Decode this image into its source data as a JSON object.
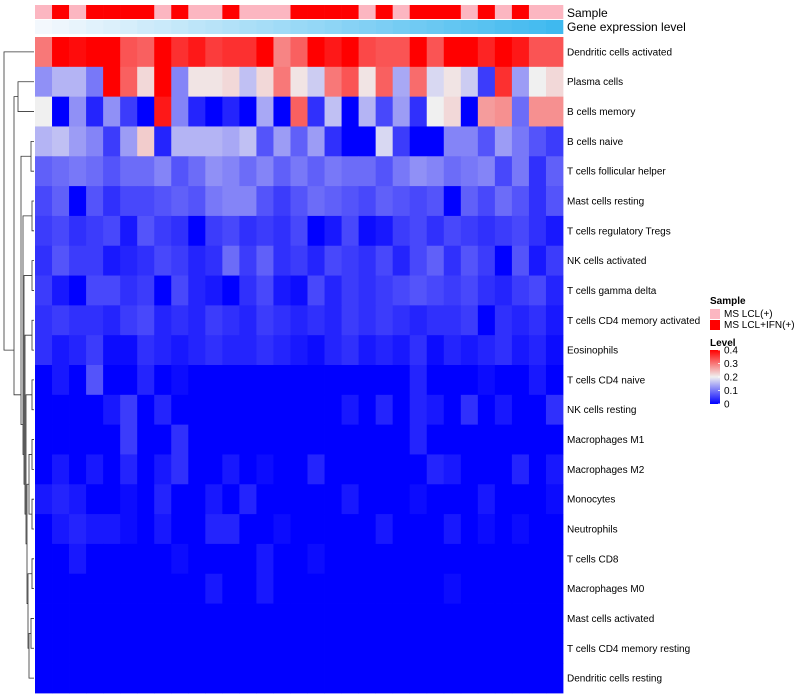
{
  "chart_data": {
    "type": "heatmap",
    "title": "",
    "annotation_tracks": [
      "Sample",
      "Gene expression level"
    ],
    "row_labels": [
      "Dendritic cells activated",
      "Plasma cells",
      "B cells memory",
      "B cells naive",
      "T cells follicular helper",
      "Mast cells resting",
      "T cells regulatory  Tregs",
      "NK cells activated",
      "T cells gamma delta",
      "T cells CD4 memory activated",
      "Eosinophils",
      "T cells CD4 naive",
      "NK cells resting",
      "Macrophages M1",
      "Macrophages M2",
      "Monocytes",
      "Neutrophils",
      "T cells CD8",
      "Macrophages M0",
      "Mast cells activated",
      "T cells CD4 memory resting",
      "Dendritic cells resting"
    ],
    "sample_groups": [
      "LCL",
      "IFN",
      "LCL",
      "IFN",
      "IFN",
      "IFN",
      "IFN",
      "LCL",
      "IFN",
      "LCL",
      "LCL",
      "IFN",
      "LCL",
      "LCL",
      "LCL",
      "IFN",
      "IFN",
      "IFN",
      "IFN",
      "LCL",
      "IFN",
      "LCL",
      "IFN",
      "IFN",
      "IFN",
      "LCL",
      "IFN",
      "LCL",
      "IFN",
      "LCL",
      "LCL"
    ],
    "expression_level": [
      0.0,
      0.03,
      0.06,
      0.1,
      0.13,
      0.16,
      0.2,
      0.23,
      0.26,
      0.3,
      0.33,
      0.36,
      0.4,
      0.43,
      0.46,
      0.5,
      0.53,
      0.56,
      0.6,
      0.63,
      0.66,
      0.7,
      0.73,
      0.76,
      0.8,
      0.83,
      0.86,
      0.9,
      0.93,
      0.96,
      1.0
    ],
    "values": [
      [
        0.3,
        0.4,
        0.39,
        0.4,
        0.4,
        0.33,
        0.32,
        0.4,
        0.36,
        0.38,
        0.35,
        0.36,
        0.36,
        0.4,
        0.29,
        0.32,
        0.4,
        0.38,
        0.4,
        0.34,
        0.33,
        0.33,
        0.4,
        0.33,
        0.4,
        0.4,
        0.37,
        0.4,
        0.38,
        0.33,
        0.33
      ],
      [
        0.12,
        0.15,
        0.15,
        0.1,
        0.4,
        0.32,
        0.22,
        0.4,
        0.11,
        0.21,
        0.21,
        0.22,
        0.16,
        0.22,
        0.3,
        0.21,
        0.17,
        0.3,
        0.33,
        0.21,
        0.32,
        0.14,
        0.31,
        0.18,
        0.21,
        0.17,
        0.05,
        0.36,
        0.13,
        0.2,
        0.22
      ],
      [
        0.2,
        0.0,
        0.12,
        0.03,
        0.12,
        0.05,
        0.0,
        0.38,
        0.11,
        0.03,
        0.0,
        0.03,
        0.0,
        0.14,
        0.0,
        0.32,
        0.04,
        0.16,
        0.0,
        0.15,
        0.06,
        0.13,
        0.04,
        0.2,
        0.22,
        0.0,
        0.27,
        0.28,
        0.09,
        0.28,
        0.28
      ],
      [
        0.15,
        0.16,
        0.13,
        0.11,
        0.05,
        0.13,
        0.23,
        0.03,
        0.15,
        0.15,
        0.15,
        0.14,
        0.16,
        0.07,
        0.13,
        0.08,
        0.13,
        0.04,
        0.0,
        0.0,
        0.18,
        0.05,
        0.0,
        0.0,
        0.11,
        0.11,
        0.07,
        0.13,
        0.1,
        0.07,
        0.05
      ],
      [
        0.08,
        0.09,
        0.1,
        0.09,
        0.07,
        0.09,
        0.09,
        0.11,
        0.07,
        0.09,
        0.12,
        0.11,
        0.09,
        0.11,
        0.08,
        0.1,
        0.08,
        0.1,
        0.09,
        0.09,
        0.07,
        0.1,
        0.12,
        0.11,
        0.09,
        0.1,
        0.11,
        0.06,
        0.1,
        0.04,
        0.08
      ],
      [
        0.06,
        0.08,
        0.0,
        0.07,
        0.04,
        0.06,
        0.06,
        0.07,
        0.08,
        0.07,
        0.1,
        0.11,
        0.11,
        0.07,
        0.05,
        0.07,
        0.09,
        0.08,
        0.07,
        0.06,
        0.08,
        0.07,
        0.06,
        0.07,
        0.0,
        0.08,
        0.06,
        0.09,
        0.07,
        0.04,
        0.07
      ],
      [
        0.05,
        0.06,
        0.04,
        0.05,
        0.06,
        0.02,
        0.07,
        0.05,
        0.04,
        0.0,
        0.05,
        0.06,
        0.04,
        0.05,
        0.04,
        0.06,
        0.0,
        0.02,
        0.06,
        0.01,
        0.02,
        0.05,
        0.06,
        0.04,
        0.06,
        0.05,
        0.04,
        0.05,
        0.06,
        0.04,
        0.02
      ],
      [
        0.04,
        0.07,
        0.05,
        0.05,
        0.02,
        0.03,
        0.04,
        0.06,
        0.05,
        0.03,
        0.04,
        0.09,
        0.05,
        0.08,
        0.04,
        0.05,
        0.03,
        0.06,
        0.05,
        0.04,
        0.06,
        0.03,
        0.06,
        0.08,
        0.04,
        0.07,
        0.05,
        0.0,
        0.07,
        0.02,
        0.05
      ],
      [
        0.05,
        0.02,
        0.0,
        0.06,
        0.06,
        0.04,
        0.05,
        0.0,
        0.06,
        0.03,
        0.02,
        0.0,
        0.04,
        0.06,
        0.02,
        0.01,
        0.06,
        0.03,
        0.05,
        0.04,
        0.05,
        0.06,
        0.07,
        0.06,
        0.05,
        0.06,
        0.04,
        0.03,
        0.05,
        0.06,
        0.03
      ],
      [
        0.04,
        0.05,
        0.04,
        0.04,
        0.03,
        0.05,
        0.06,
        0.03,
        0.04,
        0.03,
        0.05,
        0.04,
        0.03,
        0.05,
        0.04,
        0.03,
        0.04,
        0.03,
        0.05,
        0.04,
        0.05,
        0.04,
        0.03,
        0.04,
        0.04,
        0.05,
        0.0,
        0.04,
        0.03,
        0.04,
        0.02
      ],
      [
        0.04,
        0.02,
        0.03,
        0.05,
        0.01,
        0.01,
        0.04,
        0.03,
        0.02,
        0.03,
        0.04,
        0.03,
        0.03,
        0.04,
        0.03,
        0.02,
        0.01,
        0.03,
        0.04,
        0.02,
        0.03,
        0.02,
        0.04,
        0.01,
        0.03,
        0.02,
        0.03,
        0.04,
        0.02,
        0.03,
        0.01
      ],
      [
        0.0,
        0.02,
        0.0,
        0.07,
        0.0,
        0.0,
        0.03,
        0.0,
        0.01,
        0.0,
        0.0,
        0.0,
        0.0,
        0.0,
        0.0,
        0.0,
        0.0,
        0.0,
        0.0,
        0.0,
        0.0,
        0.0,
        0.03,
        0.0,
        0.0,
        0.0,
        0.01,
        0.0,
        0.0,
        0.02,
        0.0
      ],
      [
        0.0,
        0.0,
        0.0,
        0.0,
        0.02,
        0.05,
        0.0,
        0.03,
        0.0,
        0.0,
        0.0,
        0.0,
        0.0,
        0.0,
        0.0,
        0.0,
        0.0,
        0.0,
        0.02,
        0.0,
        0.03,
        0.0,
        0.03,
        0.02,
        0.0,
        0.04,
        0.0,
        0.02,
        0.0,
        0.0,
        0.04
      ],
      [
        0.0,
        0.0,
        0.0,
        0.0,
        0.0,
        0.05,
        0.0,
        0.0,
        0.04,
        0.0,
        0.0,
        0.0,
        0.0,
        0.0,
        0.0,
        0.0,
        0.0,
        0.0,
        0.0,
        0.0,
        0.0,
        0.0,
        0.03,
        0.0,
        0.0,
        0.0,
        0.0,
        0.0,
        0.0,
        0.0,
        0.0
      ],
      [
        0.0,
        0.02,
        0.0,
        0.02,
        0.0,
        0.03,
        0.0,
        0.02,
        0.04,
        0.0,
        0.0,
        0.02,
        0.0,
        0.01,
        0.0,
        0.0,
        0.03,
        0.0,
        0.0,
        0.0,
        0.0,
        0.0,
        0.0,
        0.03,
        0.02,
        0.0,
        0.0,
        0.0,
        0.03,
        0.0,
        0.02
      ],
      [
        0.02,
        0.03,
        0.02,
        0.0,
        0.0,
        0.01,
        0.0,
        0.03,
        0.0,
        0.0,
        0.02,
        0.0,
        0.03,
        0.0,
        0.0,
        0.0,
        0.0,
        0.0,
        0.02,
        0.0,
        0.0,
        0.0,
        0.01,
        0.0,
        0.0,
        0.0,
        0.02,
        0.0,
        0.0,
        0.0,
        0.01
      ],
      [
        0.0,
        0.02,
        0.03,
        0.02,
        0.02,
        0.01,
        0.0,
        0.02,
        0.0,
        0.0,
        0.03,
        0.03,
        0.0,
        0.0,
        0.01,
        0.0,
        0.0,
        0.0,
        0.0,
        0.0,
        0.02,
        0.0,
        0.0,
        0.0,
        0.02,
        0.0,
        0.01,
        0.0,
        0.01,
        0.0,
        0.0
      ],
      [
        0.0,
        0.0,
        0.02,
        0.0,
        0.0,
        0.0,
        0.0,
        0.0,
        0.01,
        0.0,
        0.0,
        0.0,
        0.0,
        0.02,
        0.0,
        0.0,
        0.01,
        0.0,
        0.0,
        0.0,
        0.0,
        0.0,
        0.0,
        0.0,
        0.0,
        0.0,
        0.0,
        0.0,
        0.0,
        0.0,
        0.0
      ],
      [
        0.0,
        0.0,
        0.0,
        0.0,
        0.0,
        0.0,
        0.0,
        0.0,
        0.0,
        0.0,
        0.02,
        0.0,
        0.0,
        0.02,
        0.0,
        0.0,
        0.0,
        0.0,
        0.0,
        0.0,
        0.0,
        0.0,
        0.0,
        0.0,
        0.01,
        0.0,
        0.0,
        0.0,
        0.0,
        0.0,
        0.0
      ],
      [
        0.0,
        0.0,
        0.0,
        0.0,
        0.0,
        0.0,
        0.0,
        0.0,
        0.0,
        0.0,
        0.0,
        0.0,
        0.0,
        0.0,
        0.0,
        0.0,
        0.0,
        0.0,
        0.0,
        0.0,
        0.0,
        0.0,
        0.0,
        0.0,
        0.0,
        0.0,
        0.0,
        0.0,
        0.0,
        0.0,
        0.0
      ],
      [
        0.0,
        0.0,
        0.0,
        0.0,
        0.0,
        0.0,
        0.0,
        0.0,
        0.0,
        0.0,
        0.0,
        0.0,
        0.0,
        0.0,
        0.0,
        0.0,
        0.0,
        0.0,
        0.0,
        0.0,
        0.0,
        0.0,
        0.0,
        0.0,
        0.0,
        0.0,
        0.0,
        0.0,
        0.0,
        0.0,
        0.0
      ],
      [
        0.0,
        0.0,
        0.0,
        0.0,
        0.0,
        0.0,
        0.0,
        0.0,
        0.0,
        0.0,
        0.0,
        0.0,
        0.0,
        0.0,
        0.0,
        0.0,
        0.0,
        0.0,
        0.0,
        0.0,
        0.0,
        0.0,
        0.0,
        0.0,
        0.0,
        0.0,
        0.0,
        0.0,
        0.0,
        0.0,
        0.0
      ]
    ],
    "legend_sample": {
      "title": "Sample",
      "items": [
        {
          "key": "LCL",
          "label": "MS LCL(+)",
          "color": "#fcb6c1"
        },
        {
          "key": "IFN",
          "label": "MS LCL+IFN(+)",
          "color": "#ff0000"
        }
      ]
    },
    "legend_level": {
      "title": "Level",
      "ticks": [
        "0.4",
        "0.3",
        "0.2",
        "0.1",
        "0"
      ],
      "range": [
        0,
        0.4
      ]
    },
    "colors": {
      "low": "#0000ff",
      "mid": "#f0f0f0",
      "high": "#ff0000",
      "expr_low": "#f3f8fd",
      "expr_high": "#3fb9ef"
    }
  }
}
